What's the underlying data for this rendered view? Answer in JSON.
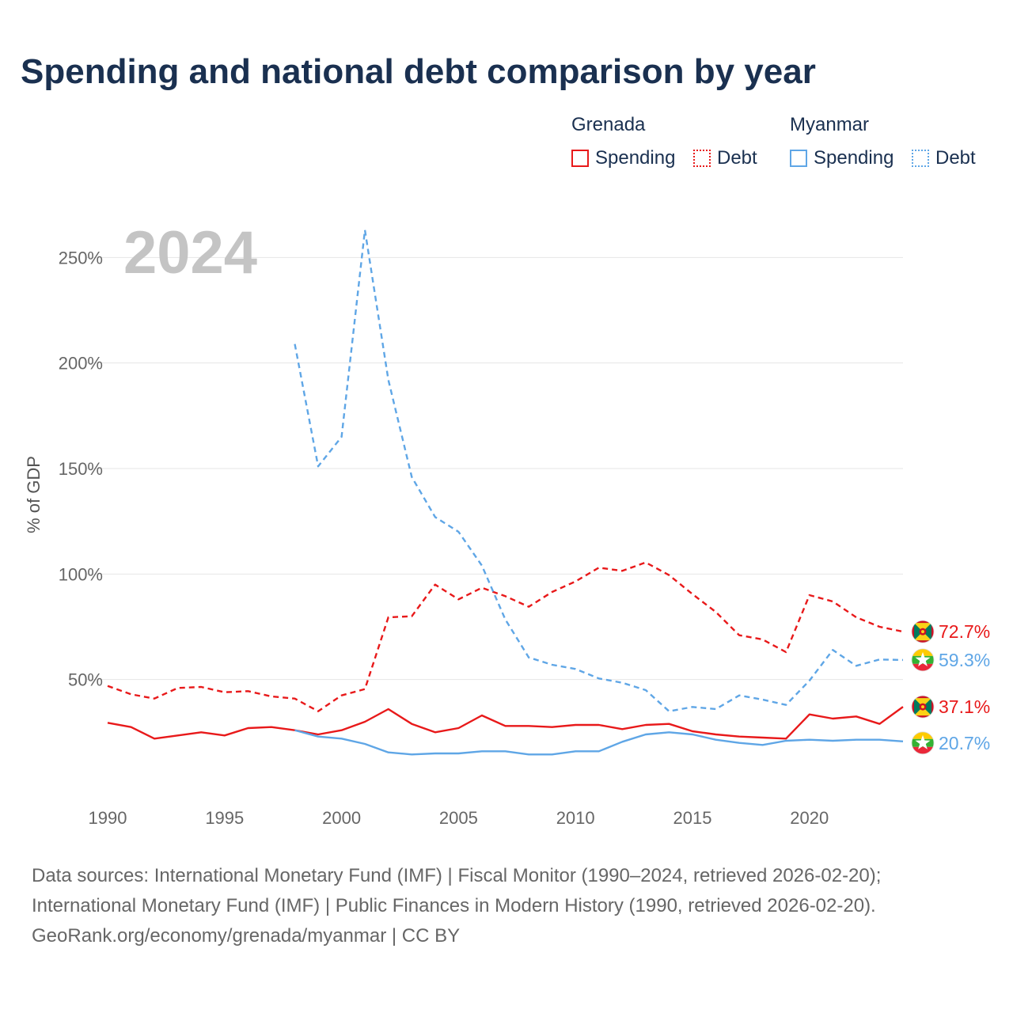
{
  "title": "Spending and national debt comparison by year",
  "legend": {
    "groups": [
      {
        "name": "Grenada",
        "items": [
          {
            "label": "Spending",
            "style": "solid"
          },
          {
            "label": "Debt",
            "style": "dotted"
          }
        ],
        "color": "#e8191a"
      },
      {
        "name": "Myanmar",
        "items": [
          {
            "label": "Spending",
            "style": "solid"
          },
          {
            "label": "Debt",
            "style": "dotted"
          }
        ],
        "color": "#5fa6e6"
      }
    ]
  },
  "year_label": "2024",
  "sources": [
    "Data sources: International Monetary Fund (IMF) | Fiscal Monitor (1990–2024, retrieved 2026-02-20);",
    "International Monetary Fund (IMF) | Public Finances in Modern History (1990, retrieved 2026-02-20).",
    "GeoRank.org/economy/grenada/myanmar | CC BY"
  ],
  "chart_data": {
    "type": "line",
    "ylabel": "% of GDP",
    "xlabel": "",
    "xlim": [
      1990,
      2024
    ],
    "ylim": [
      0,
      250
    ],
    "x_ticks": [
      1990,
      1995,
      2000,
      2005,
      2010,
      2015,
      2020
    ],
    "y_ticks": [
      50,
      100,
      150,
      200,
      250
    ],
    "y_tick_labels": [
      "50%",
      "100%",
      "150%",
      "200%",
      "250%"
    ],
    "grid": true,
    "series": [
      {
        "name": "Grenada Debt",
        "country": "Grenada",
        "metric": "Debt",
        "dash": "dashed",
        "color": "#e8191a",
        "end_label": "72.7%",
        "points": [
          [
            1990,
            47
          ],
          [
            1991,
            43
          ],
          [
            1992,
            41
          ],
          [
            1993,
            46
          ],
          [
            1994,
            46.5
          ],
          [
            1995,
            44
          ],
          [
            1996,
            44.5
          ],
          [
            1997,
            42
          ],
          [
            1998,
            41
          ],
          [
            1999,
            35
          ],
          [
            2000,
            42.5
          ],
          [
            2001,
            45.5
          ],
          [
            2002,
            79.5
          ],
          [
            2003,
            80
          ],
          [
            2004,
            95
          ],
          [
            2005,
            88
          ],
          [
            2006,
            93.5
          ],
          [
            2007,
            89.5
          ],
          [
            2008,
            84.5
          ],
          [
            2009,
            91.5
          ],
          [
            2010,
            96.5
          ],
          [
            2011,
            103
          ],
          [
            2012,
            101.5
          ],
          [
            2013,
            105.5
          ],
          [
            2014,
            99.5
          ],
          [
            2015,
            90.5
          ],
          [
            2016,
            82
          ],
          [
            2017,
            71
          ],
          [
            2018,
            69
          ],
          [
            2019,
            63
          ],
          [
            2020,
            90
          ],
          [
            2021,
            87
          ],
          [
            2022,
            79.5
          ],
          [
            2023,
            75
          ],
          [
            2024,
            72.7
          ]
        ]
      },
      {
        "name": "Grenada Spending",
        "country": "Grenada",
        "metric": "Spending",
        "dash": "solid",
        "color": "#e8191a",
        "end_label": "37.1%",
        "points": [
          [
            1990,
            29.5
          ],
          [
            1991,
            27.5
          ],
          [
            1992,
            22
          ],
          [
            1993,
            23.5
          ],
          [
            1994,
            25
          ],
          [
            1995,
            23.5
          ],
          [
            1996,
            27
          ],
          [
            1997,
            27.5
          ],
          [
            1998,
            26
          ],
          [
            1999,
            24
          ],
          [
            2000,
            26
          ],
          [
            2001,
            30
          ],
          [
            2002,
            36
          ],
          [
            2003,
            29
          ],
          [
            2004,
            25
          ],
          [
            2005,
            27
          ],
          [
            2006,
            33
          ],
          [
            2007,
            28
          ],
          [
            2008,
            28
          ],
          [
            2009,
            27.5
          ],
          [
            2010,
            28.5
          ],
          [
            2011,
            28.5
          ],
          [
            2012,
            26.5
          ],
          [
            2013,
            28.5
          ],
          [
            2014,
            29
          ],
          [
            2015,
            25.5
          ],
          [
            2016,
            24
          ],
          [
            2017,
            23
          ],
          [
            2018,
            22.5
          ],
          [
            2019,
            22
          ],
          [
            2020,
            33.5
          ],
          [
            2021,
            31.5
          ],
          [
            2022,
            32.5
          ],
          [
            2023,
            29
          ],
          [
            2024,
            37.1
          ]
        ]
      },
      {
        "name": "Myanmar Debt",
        "country": "Myanmar",
        "metric": "Debt",
        "dash": "dashed",
        "color": "#5fa6e6",
        "end_label": "59.3%",
        "points": [
          [
            1998,
            209
          ],
          [
            1999,
            151
          ],
          [
            2000,
            165
          ],
          [
            2001,
            263
          ],
          [
            2002,
            192
          ],
          [
            2003,
            146
          ],
          [
            2004,
            127
          ],
          [
            2005,
            120
          ],
          [
            2006,
            104
          ],
          [
            2007,
            78.5
          ],
          [
            2008,
            60.5
          ],
          [
            2009,
            57
          ],
          [
            2010,
            55
          ],
          [
            2011,
            50.5
          ],
          [
            2012,
            48.5
          ],
          [
            2013,
            45
          ],
          [
            2014,
            35
          ],
          [
            2015,
            37
          ],
          [
            2016,
            36
          ],
          [
            2017,
            42.5
          ],
          [
            2018,
            40.5
          ],
          [
            2019,
            38
          ],
          [
            2020,
            49.5
          ],
          [
            2021,
            64
          ],
          [
            2022,
            56.5
          ],
          [
            2023,
            59.5
          ],
          [
            2024,
            59.3
          ]
        ]
      },
      {
        "name": "Myanmar Spending",
        "country": "Myanmar",
        "metric": "Spending",
        "dash": "solid",
        "color": "#5fa6e6",
        "end_label": "20.7%",
        "points": [
          [
            1998,
            26
          ],
          [
            1999,
            23
          ],
          [
            2000,
            22
          ],
          [
            2001,
            19.5
          ],
          [
            2002,
            15.5
          ],
          [
            2003,
            14.5
          ],
          [
            2004,
            15
          ],
          [
            2005,
            15
          ],
          [
            2006,
            16
          ],
          [
            2007,
            16
          ],
          [
            2008,
            14.5
          ],
          [
            2009,
            14.5
          ],
          [
            2010,
            16
          ],
          [
            2011,
            16
          ],
          [
            2012,
            20.5
          ],
          [
            2013,
            24
          ],
          [
            2014,
            25
          ],
          [
            2015,
            24
          ],
          [
            2016,
            21.5
          ],
          [
            2017,
            20
          ],
          [
            2018,
            19
          ],
          [
            2019,
            21
          ],
          [
            2020,
            21.5
          ],
          [
            2021,
            21
          ],
          [
            2022,
            21.5
          ],
          [
            2023,
            21.5
          ],
          [
            2024,
            20.7
          ]
        ]
      }
    ]
  }
}
